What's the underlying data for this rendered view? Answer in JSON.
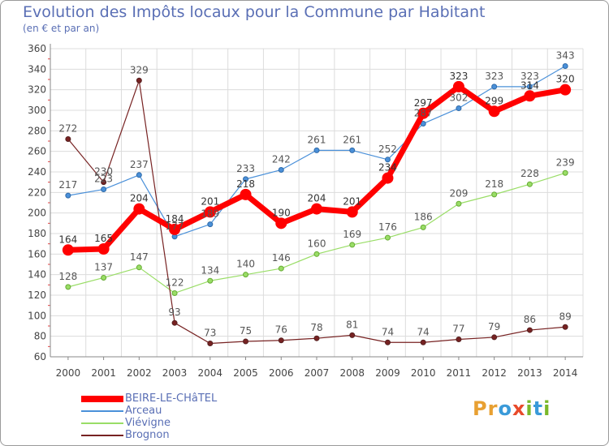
{
  "title": "Evolution des Impôts locaux pour la Commune par Habitant",
  "subtitle": "(en € et par an)",
  "brand": {
    "name": "Proxiti",
    "letters": [
      "P",
      "r",
      "o",
      "x",
      "i",
      "t",
      "i"
    ],
    "letter_colors": [
      "#e8a032",
      "#e8a032",
      "#3a9ad9",
      "#e84a2a",
      "#7ab82a",
      "#3a9ad9",
      "#7ab82a"
    ]
  },
  "colors": {
    "BEIRE-LE-CHâTEL": "#ff0000",
    "Arceau": "#4a90d9",
    "Viévigne": "#99dd66",
    "Brognon": "#772222"
  },
  "chart_data": {
    "type": "line",
    "title": "Evolution des Impôts locaux pour la Commune par Habitant",
    "subtitle": "(en € et par an)",
    "xlabel": "",
    "ylabel": "",
    "x": [
      "2000",
      "2001",
      "2002",
      "2003",
      "2004",
      "2005",
      "2006",
      "2007",
      "2008",
      "2009",
      "2010",
      "2011",
      "2012",
      "2013",
      "2014"
    ],
    "ylim": [
      60,
      360
    ],
    "yticks": [
      "60",
      "80",
      "100",
      "120",
      "140",
      "160",
      "180",
      "200",
      "220",
      "240",
      "260",
      "280",
      "300",
      "320",
      "340",
      "360"
    ],
    "grid": true,
    "legend": "bottom-left",
    "series": [
      {
        "name": "Arceau",
        "values": [
          217,
          223,
          237,
          177,
          189,
          233,
          242,
          261,
          261,
          252,
          287,
          302,
          323,
          323,
          343
        ],
        "labels": [
          "217",
          "223",
          "237",
          "177",
          "189",
          "233",
          "242",
          "261",
          "261",
          "252",
          "287",
          "302",
          "323",
          "323",
          "343"
        ]
      },
      {
        "name": "Viévigne",
        "values": [
          128,
          137,
          147,
          122,
          134,
          140,
          146,
          160,
          169,
          176,
          186,
          209,
          218,
          228,
          239
        ],
        "labels": [
          "128",
          "137",
          "147",
          "122",
          "134",
          "140",
          "146",
          "160",
          "169",
          "176",
          "186",
          "209",
          "218",
          "228",
          "239"
        ]
      },
      {
        "name": "Brognon",
        "values": [
          272,
          230,
          329,
          93,
          73,
          75,
          76,
          78,
          81,
          74,
          74,
          77,
          79,
          86,
          89
        ],
        "labels": [
          "272",
          "230",
          "329",
          "93",
          "73",
          "75",
          "76",
          "78",
          "81",
          "74",
          "74",
          "77",
          "79",
          "86",
          "89"
        ]
      },
      {
        "name": "BEIRE-LE-CHâTEL",
        "values": [
          164,
          165,
          204,
          184,
          201,
          218,
          190,
          204,
          201,
          234,
          297,
          323,
          299,
          314,
          320
        ],
        "labels": [
          "164",
          "165",
          "204",
          "184",
          "201",
          "218",
          "190",
          "204",
          "201",
          "234",
          "297",
          "323",
          "299",
          "314",
          "320"
        ]
      }
    ]
  }
}
